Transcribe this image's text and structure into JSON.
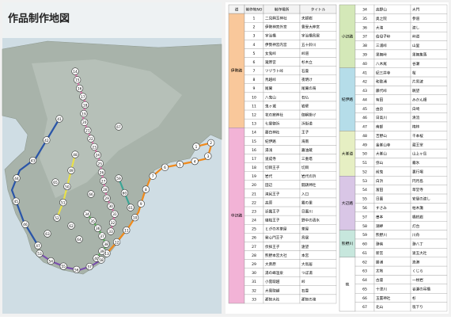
{
  "map": {
    "title": "作品制作地図"
  },
  "table": {
    "headers": [
      "道",
      "制作地NO",
      "制作場所",
      "タイトル"
    ],
    "left": [
      {
        "region": "伊勢路",
        "color": "#f9c89b",
        "route_color": "#f08a1c",
        "rows": [
          [
            1,
            "二見興玉神社",
            "夫婦岩"
          ],
          [
            2,
            "伊勢神宮外宮",
            "豊受大神宮"
          ],
          [
            3,
            "宇治橋",
            "宇治橋鳥居"
          ],
          [
            4,
            "伊勢神宮内宮",
            "五十鈴川"
          ],
          [
            5,
            "女鬼峠",
            "峠道"
          ],
          [
            6,
            "瀧原宮",
            "杉木立"
          ],
          [
            7,
            "ツヅラト峠",
            "石畳"
          ],
          [
            8,
            "馬越峠",
            "夜明け"
          ],
          [
            9,
            "尾鷲",
            "尾鷲の海"
          ],
          [
            10,
            "八鬼山",
            "石仏"
          ],
          [
            11,
            "鬼ヶ城",
            "岩壁"
          ],
          [
            12,
            "花の窟神社",
            "御綱掛け"
          ],
          [
            13,
            "七里御浜",
            "浜街道"
          ]
        ]
      },
      {
        "region": "中辺路",
        "color": "#f2b3d6",
        "route_color": "#e77fb6",
        "rows": [
          [
            14,
            "藤白神社",
            "王子"
          ],
          [
            15,
            "紀伊路",
            "海南"
          ],
          [
            16,
            "湯浅",
            "醤油蔵"
          ],
          [
            17,
            "道成寺",
            "三重塔"
          ],
          [
            18,
            "切目王子",
            "切目"
          ],
          [
            19,
            "岩代",
            "岩代の浜"
          ],
          [
            20,
            "田辺",
            "闘鶏神社"
          ],
          [
            21,
            "滝尻王子",
            "入口"
          ],
          [
            22,
            "高原",
            "霧の里"
          ],
          [
            23,
            "近露王子",
            "日置川"
          ],
          [
            24,
            "継桜王子",
            "野中の清水"
          ],
          [
            25,
            "とがの木茶屋",
            "茶屋"
          ],
          [
            26,
            "発心門王子",
            "鳥居"
          ],
          [
            27,
            "伏拝王子",
            "遠望"
          ],
          [
            28,
            "熊野本宮大社",
            "本宮"
          ],
          [
            29,
            "大斎原",
            "大鳥居"
          ],
          [
            30,
            "湯の峰温泉",
            "つぼ湯"
          ],
          [
            31,
            "小雲取越",
            "峠"
          ],
          [
            32,
            "大雲取越",
            "石畳"
          ],
          [
            33,
            "那智大社",
            "那智の滝"
          ]
        ]
      }
    ],
    "right": [
      {
        "region": "小辺路",
        "color": "#d4e8b8",
        "route_color": "#5cb85c",
        "rows": [
          [
            34,
            "高野山",
            "大門"
          ],
          [
            35,
            "奥之院",
            "参道"
          ],
          [
            36,
            "大滝",
            "渡し"
          ],
          [
            37,
            "伯母子峠",
            "峠道"
          ],
          [
            38,
            "三浦峠",
            "山里"
          ],
          [
            39,
            "果無峠",
            "果無集落"
          ],
          [
            40,
            "八木尾",
            "谷瀬"
          ]
        ]
      },
      {
        "region": "紀伊路",
        "color": "#b5dde9",
        "route_color": "#2a55a8",
        "rows": [
          [
            41,
            "紀三井寺",
            "桜"
          ],
          [
            42,
            "和歌浦",
            "片男波"
          ],
          [
            43,
            "藤代峠",
            "眺望"
          ],
          [
            44,
            "有田",
            "みかん畑"
          ],
          [
            45,
            "由良",
            "白崎"
          ],
          [
            46,
            "日高川",
            "清流"
          ],
          [
            47,
            "南部",
            "梅林"
          ]
        ]
      },
      {
        "region": "大峯道",
        "color": "#e6efc3",
        "route_color": "#e8e04a",
        "rows": [
          [
            48,
            "吉野山",
            "千本桜"
          ],
          [
            49,
            "金峯山寺",
            "蔵王堂"
          ],
          [
            50,
            "大峯山",
            "山上ヶ岳"
          ],
          [
            51,
            "弥山",
            "霧氷"
          ],
          [
            52,
            "前鬼",
            "裏行場"
          ]
        ]
      },
      {
        "region": "大辺路",
        "color": "#d9c6e6",
        "route_color": "#7a4fae",
        "rows": [
          [
            53,
            "白浜",
            "円月島"
          ],
          [
            54,
            "富田",
            "草堂寺"
          ],
          [
            55,
            "日置",
            "安居の渡し"
          ],
          [
            56,
            "すさみ",
            "枯木灘"
          ],
          [
            57,
            "串本",
            "橋杭岩"
          ],
          [
            58,
            "潮岬",
            "灯台"
          ]
        ]
      },
      {
        "region": "熊野川",
        "color": "#c7e7dd",
        "route_color": "#3aa595",
        "rows": [
          [
            59,
            "熊野川",
            "川舟"
          ],
          [
            60,
            "瀞峡",
            "瀞八丁"
          ],
          [
            61,
            "新宮",
            "速玉大社"
          ]
        ]
      },
      {
        "region": "他",
        "color": "#ffffff",
        "rows": [
          [
            62,
            "勝浦",
            "漁港"
          ],
          [
            63,
            "太地",
            "くじら"
          ],
          [
            64,
            "古座",
            "一枚岩"
          ],
          [
            65,
            "十津川",
            "谷瀬の吊橋"
          ],
          [
            66,
            "玉置神社",
            "杉"
          ],
          [
            67,
            "北山",
            "筏下り"
          ]
        ]
      }
    ]
  }
}
